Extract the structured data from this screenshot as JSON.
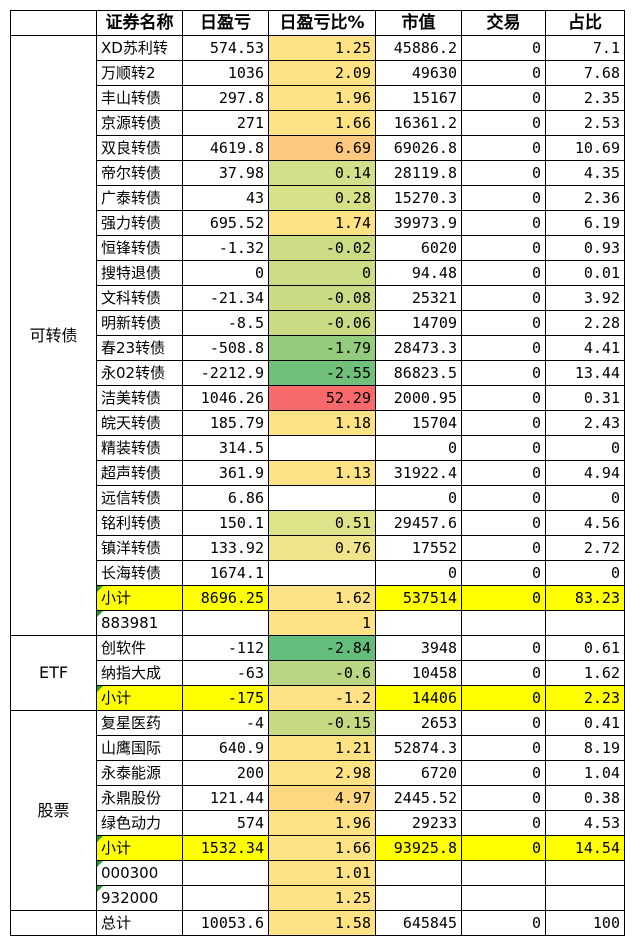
{
  "headers": [
    "证券名称",
    "日盈亏",
    "日盈亏比%",
    "市值",
    "交易",
    "占比"
  ],
  "groups": [
    {
      "label": "可转债",
      "rows": [
        {
          "name": "XD苏利转",
          "pnl": "574.53",
          "pct": "1.25",
          "mv": "45886.2",
          "trade": "0",
          "share": "7.1",
          "color": "#fee283"
        },
        {
          "name": "万顺转2",
          "pnl": "1036",
          "pct": "2.09",
          "mv": "49630",
          "trade": "0",
          "share": "7.68",
          "color": "#fee283"
        },
        {
          "name": "丰山转债",
          "pnl": "297.8",
          "pct": "1.96",
          "mv": "15167",
          "trade": "0",
          "share": "2.35",
          "color": "#fee283"
        },
        {
          "name": "京源转债",
          "pnl": "271",
          "pct": "1.66",
          "mv": "16361.2",
          "trade": "0",
          "share": "2.53",
          "color": "#fee283"
        },
        {
          "name": "双良转债",
          "pnl": "4619.8",
          "pct": "6.69",
          "mv": "69026.8",
          "trade": "0",
          "share": "10.69",
          "color": "#fdc980"
        },
        {
          "name": "帝尔转债",
          "pnl": "37.98",
          "pct": "0.14",
          "mv": "28119.8",
          "trade": "0",
          "share": "4.35",
          "color": "#d3e08a"
        },
        {
          "name": "广泰转债",
          "pnl": "43",
          "pct": "0.28",
          "mv": "15270.3",
          "trade": "0",
          "share": "2.36",
          "color": "#d9e188"
        },
        {
          "name": "强力转债",
          "pnl": "695.52",
          "pct": "1.74",
          "mv": "39973.9",
          "trade": "0",
          "share": "6.19",
          "color": "#fee283"
        },
        {
          "name": "恒锋转债",
          "pnl": "-1.32",
          "pct": "-0.02",
          "mv": "6020",
          "trade": "0",
          "share": "0.93",
          "color": "#cbdc85"
        },
        {
          "name": "搜特退债",
          "pnl": "0",
          "pct": "0",
          "mv": "94.48",
          "trade": "0",
          "share": "0.01",
          "color": "#cbdc85"
        },
        {
          "name": "文科转债",
          "pnl": "-21.34",
          "pct": "-0.08",
          "mv": "25321",
          "trade": "0",
          "share": "3.92",
          "color": "#c9db84"
        },
        {
          "name": "明新转债",
          "pnl": "-8.5",
          "pct": "-0.06",
          "mv": "14709",
          "trade": "0",
          "share": "2.28",
          "color": "#c9db84"
        },
        {
          "name": "春23转债",
          "pnl": "-508.8",
          "pct": "-1.79",
          "mv": "28473.3",
          "trade": "0",
          "share": "4.41",
          "color": "#95cb7d"
        },
        {
          "name": "永02转债",
          "pnl": "-2212.9",
          "pct": "-2.55",
          "mv": "86823.5",
          "trade": "0",
          "share": "13.44",
          "color": "#70c07a"
        },
        {
          "name": "洁美转债",
          "pnl": "1046.26",
          "pct": "52.29",
          "mv": "2000.95",
          "trade": "0",
          "share": "0.31",
          "color": "#f8696b"
        },
        {
          "name": "皖天转债",
          "pnl": "185.79",
          "pct": "1.18",
          "mv": "15704",
          "trade": "0",
          "share": "2.43",
          "color": "#fee283"
        },
        {
          "name": "精装转债",
          "pnl": "314.5",
          "pct": "",
          "mv": "0",
          "trade": "0",
          "share": "0",
          "color": "#ffffff"
        },
        {
          "name": "超声转债",
          "pnl": "361.9",
          "pct": "1.13",
          "mv": "31922.4",
          "trade": "0",
          "share": "4.94",
          "color": "#fee283"
        },
        {
          "name": "远信转债",
          "pnl": "6.86",
          "pct": "",
          "mv": "0",
          "trade": "0",
          "share": "0",
          "color": "#ffffff"
        },
        {
          "name": "铭利转债",
          "pnl": "150.1",
          "pct": "0.51",
          "mv": "29457.6",
          "trade": "0",
          "share": "4.56",
          "color": "#dee38a"
        },
        {
          "name": "镇洋转债",
          "pnl": "133.92",
          "pct": "0.76",
          "mv": "17552",
          "trade": "0",
          "share": "2.72",
          "color": "#f0e58c"
        },
        {
          "name": "长海转债",
          "pnl": "1674.1",
          "pct": "",
          "mv": "0",
          "trade": "0",
          "share": "0",
          "color": "#ffffff"
        }
      ],
      "subtotal": {
        "name": "小计",
        "pnl": "8696.25",
        "pct": "1.62",
        "mv": "537514",
        "trade": "0",
        "share": "83.23"
      },
      "extra": [
        {
          "name": "883981",
          "pct": "1",
          "color": "#fee283"
        }
      ]
    },
    {
      "label": "ETF",
      "rows": [
        {
          "name": "创软件",
          "pnl": "-112",
          "pct": "-2.84",
          "mv": "3948",
          "trade": "0",
          "share": "0.61",
          "color": "#63be7b"
        },
        {
          "name": "纳指大成",
          "pnl": "-63",
          "pct": "-0.6",
          "mv": "10458",
          "trade": "0",
          "share": "1.62",
          "color": "#b9d782"
        }
      ],
      "subtotal": {
        "name": "小计",
        "pnl": "-175",
        "pct": "-1.2",
        "mv": "14406",
        "trade": "0",
        "share": "2.23"
      },
      "extra": []
    },
    {
      "label": "股票",
      "rows": [
        {
          "name": "复星医药",
          "pnl": "-4",
          "pct": "-0.15",
          "mv": "2653",
          "trade": "0",
          "share": "0.41",
          "color": "#c5da83"
        },
        {
          "name": "山鹰国际",
          "pnl": "640.9",
          "pct": "1.21",
          "mv": "52874.3",
          "trade": "0",
          "share": "8.19",
          "color": "#fee283"
        },
        {
          "name": "永泰能源",
          "pnl": "200",
          "pct": "2.98",
          "mv": "6720",
          "trade": "0",
          "share": "1.04",
          "color": "#fee283"
        },
        {
          "name": "永鼎股份",
          "pnl": "121.44",
          "pct": "4.97",
          "mv": "2445.52",
          "trade": "0",
          "share": "0.38",
          "color": "#fed881"
        },
        {
          "name": "绿色动力",
          "pnl": "574",
          "pct": "1.96",
          "mv": "29233",
          "trade": "0",
          "share": "4.53",
          "color": "#fee283"
        }
      ],
      "subtotal": {
        "name": "小计",
        "pnl": "1532.34",
        "pct": "1.66",
        "mv": "93925.8",
        "trade": "0",
        "share": "14.54"
      },
      "extra": [
        {
          "name": "000300",
          "pct": "1.01",
          "color": "#fee283"
        },
        {
          "name": "932000",
          "pct": "1.25",
          "color": "#fee283"
        }
      ]
    }
  ],
  "total": {
    "name": "总计",
    "pnl": "10053.6",
    "pct": "1.58",
    "mv": "645845",
    "trade": "0",
    "share": "100",
    "color": "#fee283"
  }
}
